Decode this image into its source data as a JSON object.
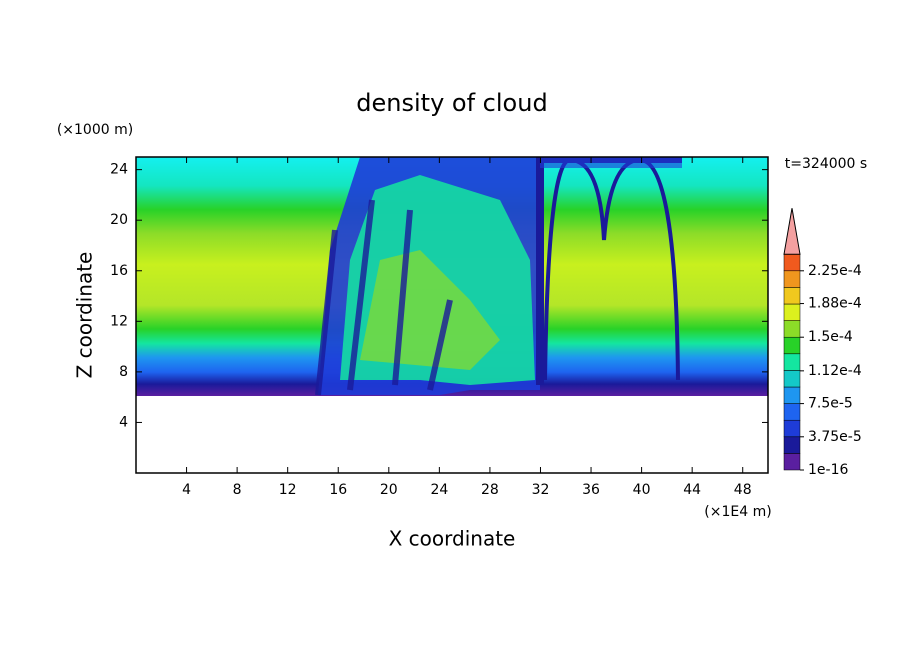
{
  "chart_data": {
    "type": "contour",
    "title": "density of cloud",
    "y_unit": "(×1000 m)",
    "y_label": "Z coordinate",
    "x_label": "X coordinate",
    "x_unit": "(×1E4 m)",
    "time_label": "t=324000 s",
    "xlim": [
      0,
      50
    ],
    "xticks": [
      4,
      8,
      12,
      16,
      20,
      24,
      28,
      32,
      36,
      40,
      44,
      48
    ],
    "ylim": [
      0,
      25
    ],
    "yticks": [
      4,
      8,
      12,
      16,
      20,
      24
    ],
    "colorbar": {
      "clim": [
        1e-16,
        0.00024375
      ],
      "colors": [
        "#5a1fa0",
        "#1a1a9a",
        "#1e3cd8",
        "#1e64f0",
        "#1e96f0",
        "#14c8c8",
        "#14e6a0",
        "#28d228",
        "#8cdc28",
        "#dcf01e",
        "#f0c81e",
        "#f0961e",
        "#f05a1e"
      ],
      "extend_color": "#f4a0a0",
      "ticks": [
        {
          "value": 1e-16,
          "label": "1e-16"
        },
        {
          "value": 3.75e-05,
          "label": "3.75e-5"
        },
        {
          "value": 7.5e-05,
          "label": "7.5e-5"
        },
        {
          "value": 0.000112,
          "label": "1.12e-4"
        },
        {
          "value": 0.00015,
          "label": "1.5e-4"
        },
        {
          "value": 0.000188,
          "label": "1.88e-4"
        },
        {
          "value": 0.000225,
          "label": "2.25e-4"
        }
      ]
    }
  }
}
